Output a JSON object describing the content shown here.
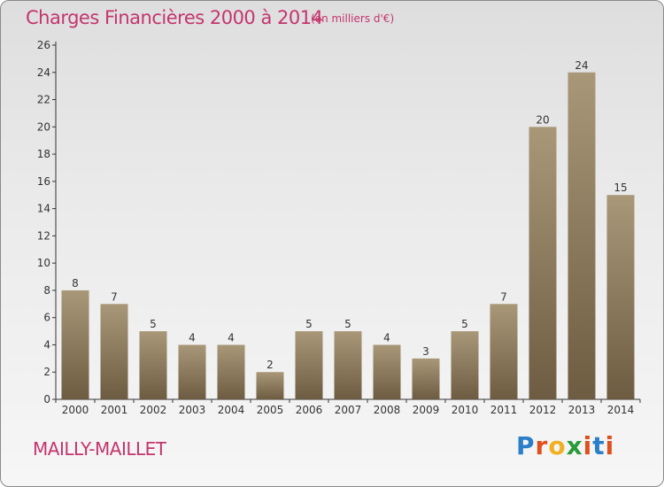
{
  "header": {
    "title": "Charges Financières 2000 à 2014",
    "subtitle": "(en milliers d'€)"
  },
  "footer": {
    "town": "MAILLY-MAILLET",
    "brand": "Proxiti"
  },
  "colors": {
    "title": "#c4356e",
    "bar_top": "#a89878",
    "bar_bottom": "#6e5c42",
    "brand_letters": [
      "#2a7fc8",
      "#e0501e",
      "#f0b020",
      "#2a9a3a",
      "#e0501e",
      "#2a7fc8",
      "#e0501e"
    ]
  },
  "chart_data": {
    "type": "bar",
    "title": "Charges Financières 2000 à 2014",
    "subtitle": "(en milliers d'€)",
    "xlabel": "",
    "ylabel": "",
    "categories": [
      "2000",
      "2001",
      "2002",
      "2003",
      "2004",
      "2005",
      "2006",
      "2007",
      "2008",
      "2009",
      "2010",
      "2011",
      "2012",
      "2013",
      "2014"
    ],
    "values": [
      8,
      7,
      5,
      4,
      4,
      2,
      5,
      5,
      4,
      3,
      5,
      7,
      20,
      24,
      15
    ],
    "ylim": [
      0,
      26
    ],
    "yticks": [
      0,
      2,
      4,
      6,
      8,
      10,
      12,
      14,
      16,
      18,
      20,
      22,
      24,
      26
    ],
    "grid": false,
    "legend": "none"
  }
}
